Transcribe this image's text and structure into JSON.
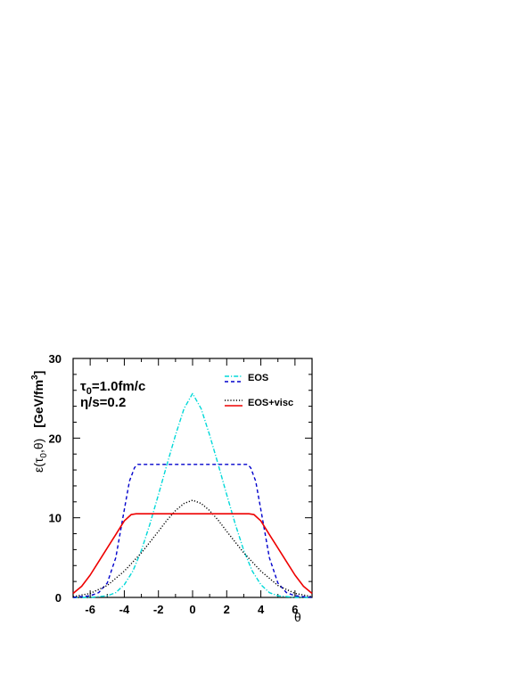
{
  "chart_data": {
    "type": "line",
    "title": "",
    "xlabel": "θ",
    "ylabel": {
      "main": "ε(τ",
      "sub": "0",
      "rest": ",θ)",
      "units": "[GeV/fm",
      "units_sup": "3",
      "units_close": "]"
    },
    "xlim": [
      -7,
      7
    ],
    "ylim": [
      0,
      30
    ],
    "x_ticks": [
      -6,
      -4,
      -2,
      0,
      2,
      4,
      6
    ],
    "y_ticks": [
      0,
      10,
      20,
      30
    ],
    "grid": false,
    "annotations": [
      {
        "prefix": "τ",
        "sub": "0",
        "suffix": "=1.0fm/c"
      },
      {
        "prefix": "η/s=0.2",
        "sub": "",
        "suffix": ""
      }
    ],
    "legend": {
      "placement": "top-right",
      "entries": [
        {
          "label": "EOS",
          "series": [
            0,
            1
          ]
        },
        {
          "label": "EOS+visc",
          "series": [
            2,
            3
          ]
        }
      ]
    },
    "series": [
      {
        "color": "#00d8d8",
        "dash": "dash-dot",
        "x": [
          -7,
          -6,
          -5,
          -4.5,
          -4,
          -3.5,
          -3,
          -2.5,
          -2,
          -1.5,
          -1,
          -0.5,
          0,
          0.5,
          1,
          1.5,
          2,
          2.5,
          3,
          3.5,
          4,
          4.5,
          5,
          6,
          7
        ],
        "y": [
          0,
          0,
          0.2,
          0.6,
          1.6,
          3.3,
          5.9,
          9.2,
          12.9,
          16.7,
          20.4,
          23.7,
          25.6,
          23.7,
          20.4,
          16.7,
          12.9,
          9.2,
          5.9,
          3.3,
          1.6,
          0.6,
          0.2,
          0,
          0
        ]
      },
      {
        "color": "#0000cc",
        "dash": "dashed",
        "x": [
          -7,
          -6,
          -5.5,
          -5,
          -4.5,
          -4,
          -3.7,
          -3.4,
          -3.2,
          -3,
          0,
          3,
          3.2,
          3.4,
          3.7,
          4,
          4.5,
          5,
          5.5,
          6,
          7
        ],
        "y": [
          0,
          0.2,
          0.6,
          1.8,
          5,
          11,
          14.6,
          16.3,
          16.7,
          16.7,
          16.7,
          16.7,
          16.7,
          16.3,
          14.6,
          11,
          5,
          1.8,
          0.6,
          0.2,
          0
        ]
      },
      {
        "color": "#000000",
        "dash": "dotted",
        "x": [
          -7,
          -6,
          -5,
          -4,
          -3,
          -2,
          -1.5,
          -1,
          -0.5,
          0,
          0.5,
          1,
          1.5,
          2,
          3,
          4,
          5,
          6,
          7
        ],
        "y": [
          0.1,
          0.5,
          1.5,
          3.3,
          5.6,
          8.3,
          9.7,
          10.9,
          11.8,
          12.2,
          11.8,
          10.9,
          9.7,
          8.3,
          5.6,
          3.3,
          1.5,
          0.5,
          0.1
        ]
      },
      {
        "color": "#ee0000",
        "dash": "solid",
        "x": [
          -7,
          -6.5,
          -6,
          -5.5,
          -5,
          -4.5,
          -4,
          -3.6,
          -3.3,
          -3,
          0,
          3,
          3.3,
          3.6,
          4,
          4.5,
          5,
          5.5,
          6,
          6.5,
          7
        ],
        "y": [
          0.5,
          1.4,
          2.8,
          4.5,
          6.2,
          7.9,
          9.6,
          10.4,
          10.5,
          10.5,
          10.5,
          10.5,
          10.5,
          10.4,
          9.6,
          7.9,
          6.2,
          4.5,
          2.8,
          1.4,
          0.5
        ]
      }
    ]
  }
}
